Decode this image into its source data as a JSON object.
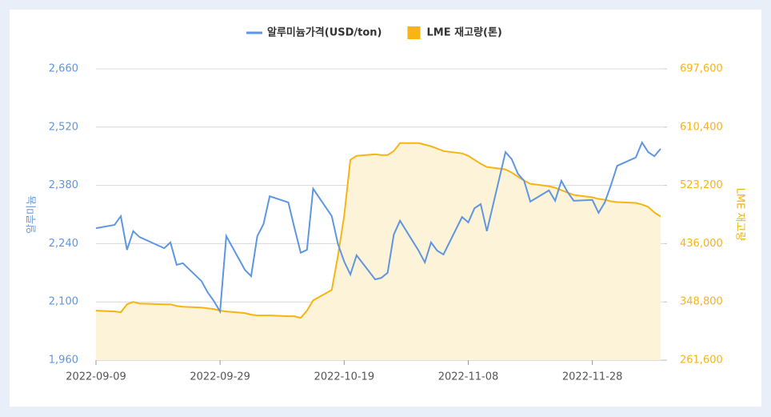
{
  "chart_data": {
    "type": "line-area",
    "x": [
      "2022-09-09",
      "2022-09-12",
      "2022-09-13",
      "2022-09-14",
      "2022-09-15",
      "2022-09-16",
      "2022-09-20",
      "2022-09-21",
      "2022-09-22",
      "2022-09-23",
      "2022-09-26",
      "2022-09-27",
      "2022-09-28",
      "2022-09-29",
      "2022-09-30",
      "2022-10-03",
      "2022-10-04",
      "2022-10-05",
      "2022-10-06",
      "2022-10-07",
      "2022-10-10",
      "2022-10-11",
      "2022-10-12",
      "2022-10-13",
      "2022-10-14",
      "2022-10-17",
      "2022-10-18",
      "2022-10-19",
      "2022-10-20",
      "2022-10-21",
      "2022-10-24",
      "2022-10-25",
      "2022-10-26",
      "2022-10-27",
      "2022-10-28",
      "2022-10-31",
      "2022-11-01",
      "2022-11-02",
      "2022-11-03",
      "2022-11-04",
      "2022-11-07",
      "2022-11-08",
      "2022-11-09",
      "2022-11-10",
      "2022-11-11",
      "2022-11-14",
      "2022-11-15",
      "2022-11-16",
      "2022-11-17",
      "2022-11-18",
      "2022-11-21",
      "2022-11-22",
      "2022-11-23",
      "2022-11-24",
      "2022-11-25",
      "2022-11-28",
      "2022-11-29",
      "2022-11-30",
      "2022-12-01",
      "2022-12-02",
      "2022-12-05",
      "2022-12-06",
      "2022-12-07",
      "2022-12-08",
      "2022-12-09"
    ],
    "xlim": [
      "2022-09-09",
      "2022-12-09"
    ],
    "xticks": [
      "2022-09-09",
      "2022-09-29",
      "2022-10-19",
      "2022-11-08",
      "2022-11-28"
    ],
    "ylabel": "알루미늄",
    "y2label": "LME 재고량",
    "ylim": [
      1960,
      2660
    ],
    "yticks": [
      {
        "value": 1960,
        "label": "1,960"
      },
      {
        "value": 2100,
        "label": "2,100"
      },
      {
        "value": 2240,
        "label": "2,240"
      },
      {
        "value": 2380,
        "label": "2,380"
      },
      {
        "value": 2520,
        "label": "2,520"
      },
      {
        "value": 2660,
        "label": "2,660"
      }
    ],
    "y2lim": [
      261600,
      697600
    ],
    "y2ticks": [
      {
        "value": 261600,
        "label": "261,600"
      },
      {
        "value": 348800,
        "label": "348,800"
      },
      {
        "value": 436000,
        "label": "436,000"
      },
      {
        "value": 523200,
        "label": "523,200"
      },
      {
        "value": 610400,
        "label": "610,400"
      },
      {
        "value": 697600,
        "label": "697,600"
      }
    ],
    "grid": true,
    "series": [
      {
        "name": "알루미늄가격(USD/ton)",
        "kind": "line",
        "color": "#5f96e2",
        "values": [
          2277,
          2285,
          2306,
          2225,
          2270,
          2256,
          2229,
          2243,
          2189,
          2193,
          2150,
          2123,
          2102,
          2077,
          2258,
          2177,
          2162,
          2258,
          2287,
          2354,
          2339,
          2277,
          2218,
          2225,
          2372,
          2306,
          2239,
          2197,
          2166,
          2212,
          2154,
          2158,
          2170,
          2262,
          2295,
          2223,
          2195,
          2243,
          2223,
          2214,
          2304,
          2291,
          2325,
          2335,
          2270,
          2460,
          2443,
          2408,
          2391,
          2341,
          2368,
          2343,
          2391,
          2364,
          2343,
          2345,
          2314,
          2339,
          2381,
          2427,
          2447,
          2483,
          2460,
          2450,
          2468
        ]
      },
      {
        "name": "LME 재고량(톤)",
        "kind": "area",
        "axis": "y2",
        "color": "#f7b412",
        "values": [
          335700,
          334500,
          333300,
          345200,
          348800,
          346400,
          345200,
          345200,
          342800,
          341600,
          340400,
          339200,
          338100,
          335700,
          334500,
          332100,
          329700,
          328500,
          328500,
          328500,
          327300,
          327300,
          324900,
          335700,
          351200,
          366700,
          418100,
          477800,
          561400,
          567400,
          569800,
          568600,
          568600,
          574600,
          586500,
          586500,
          584100,
          581700,
          578200,
          574600,
          571000,
          567400,
          561400,
          555500,
          550700,
          547100,
          542300,
          536300,
          530400,
          525600,
          522000,
          519600,
          516000,
          512500,
          508900,
          505300,
          502900,
          501700,
          499300,
          498100,
          496900,
          494500,
          491000,
          482600,
          476600
        ]
      }
    ]
  }
}
